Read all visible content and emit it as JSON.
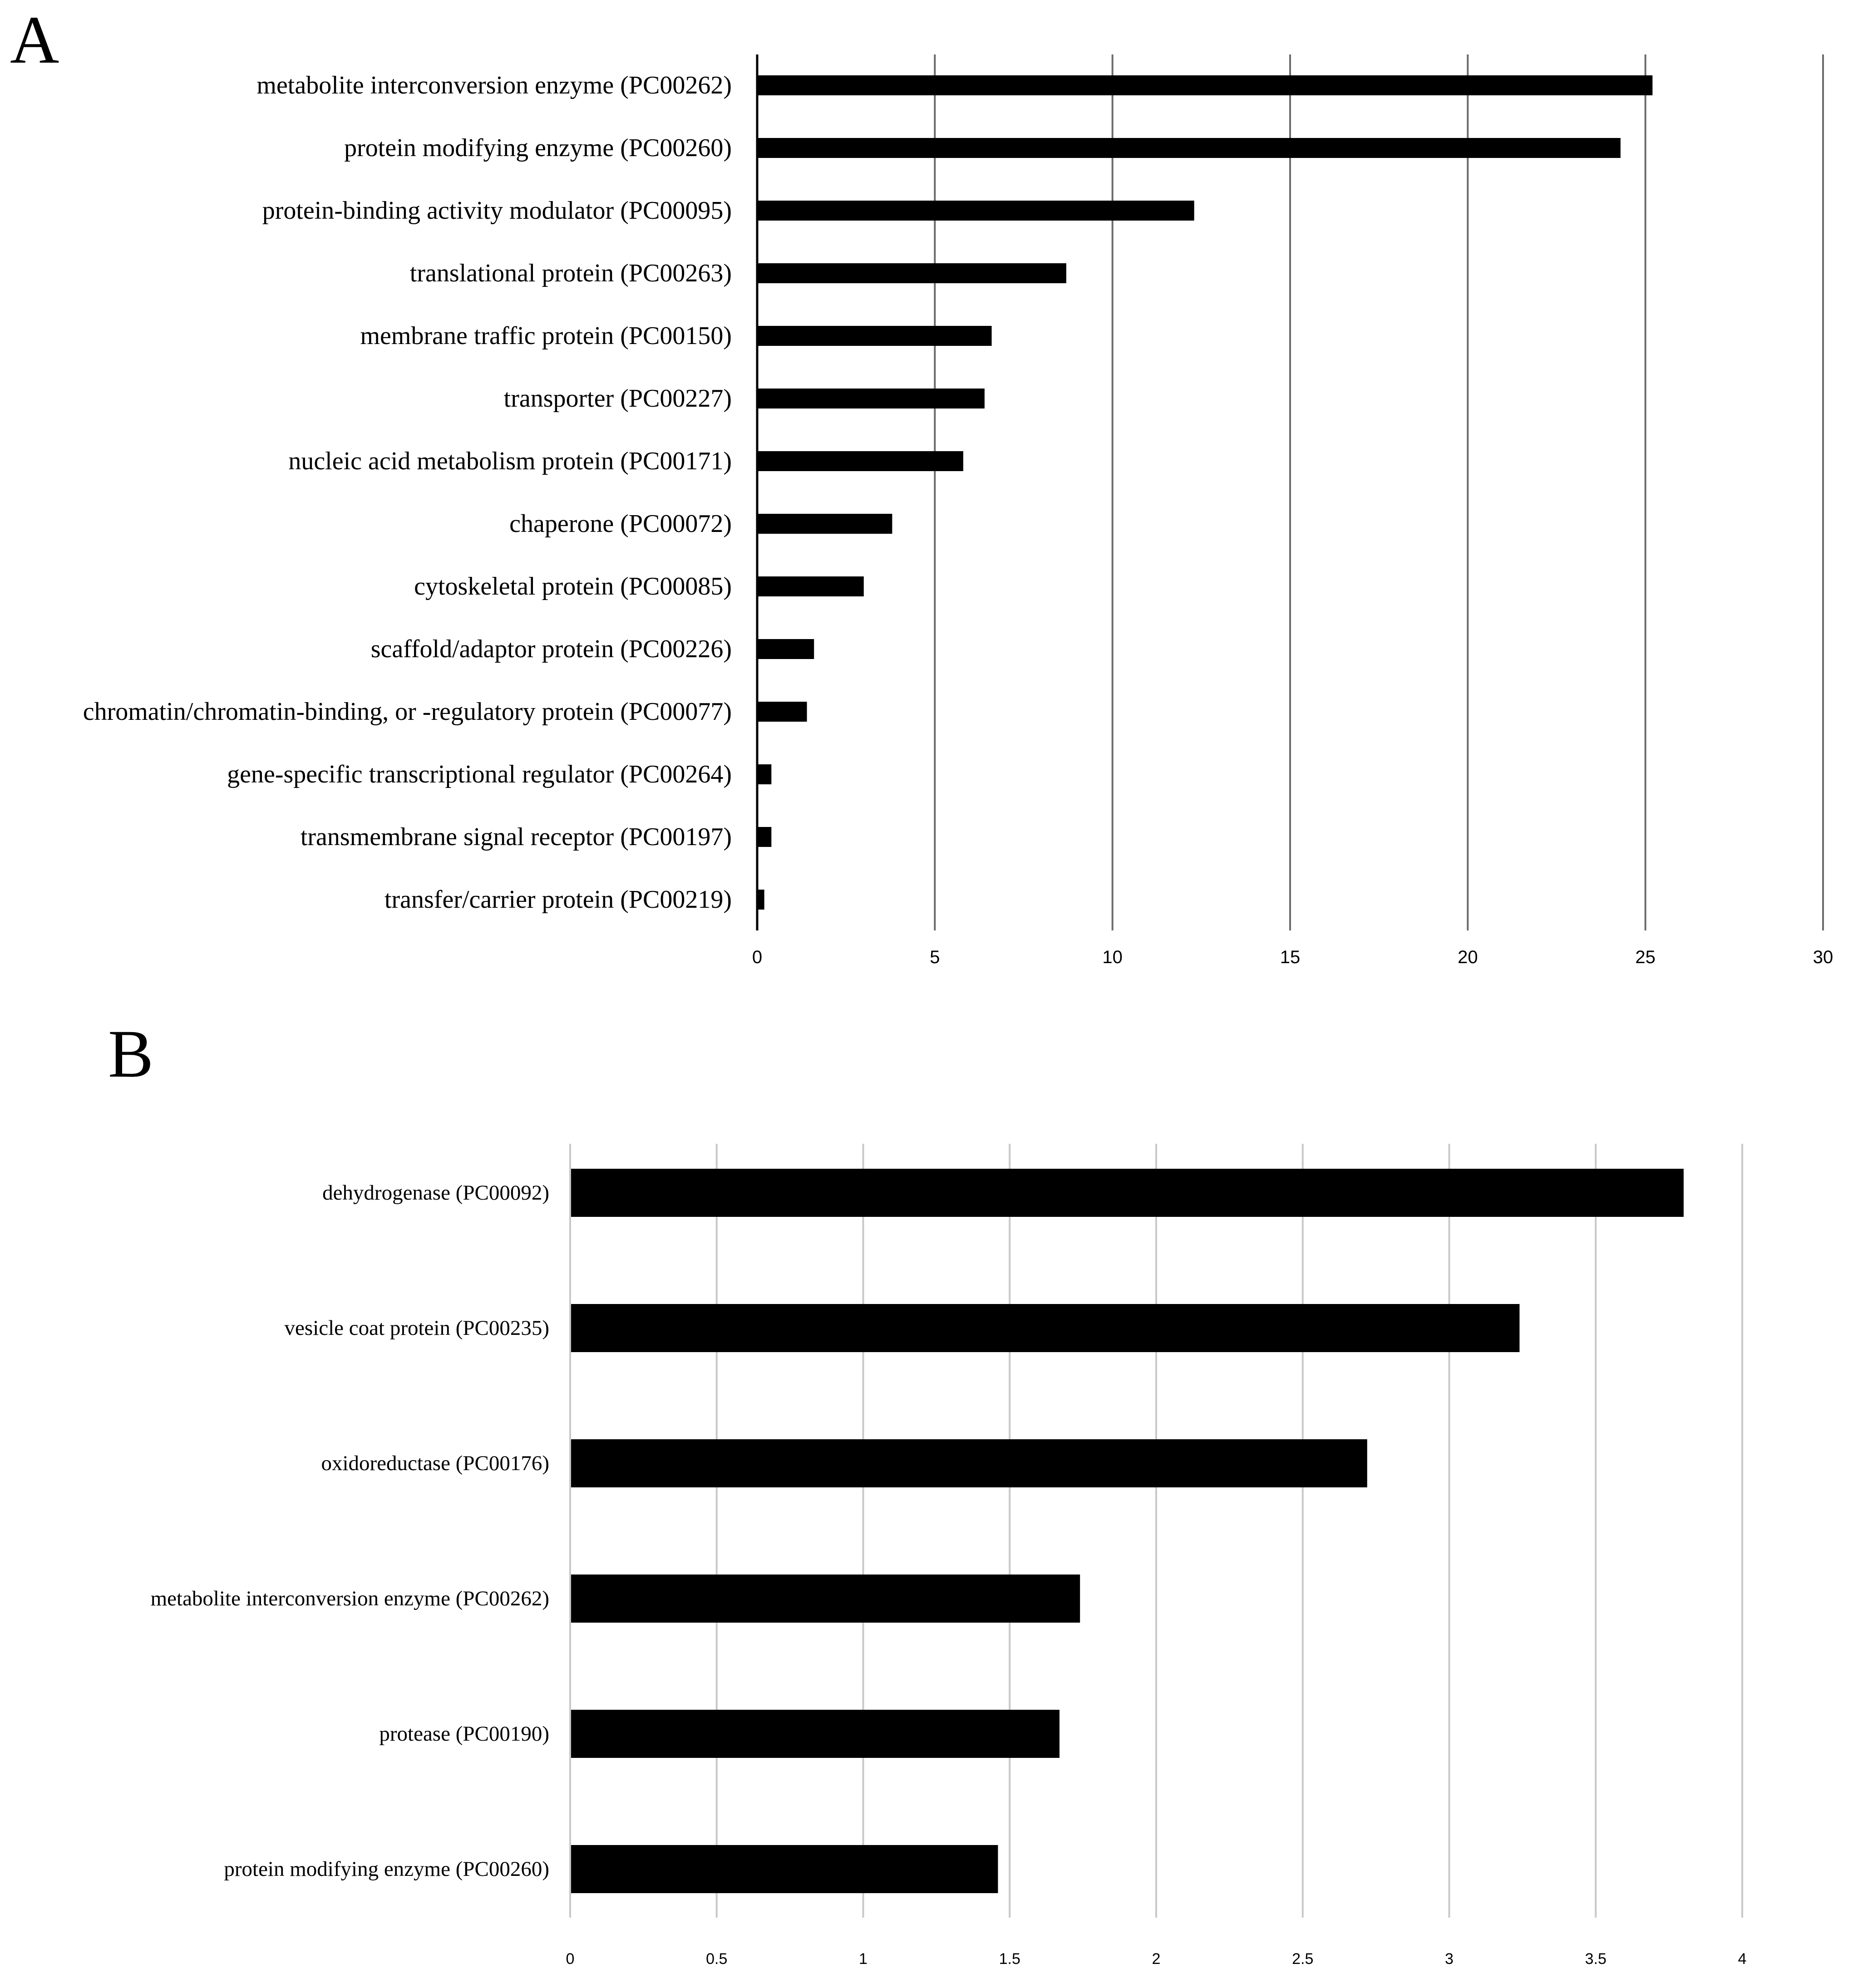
{
  "figure": {
    "panel_a_letter": "A",
    "panel_b_letter": "B"
  },
  "colors": {
    "bar": "#000000",
    "grid_a": "#6b6b6b",
    "grid_b": "#c8c8c8",
    "axis": "#000000",
    "background": "#ffffff"
  },
  "chart_data": [
    {
      "panel": "A",
      "type": "bar",
      "orientation": "horizontal",
      "title": "",
      "xlabel": "",
      "ylabel": "",
      "grid": true,
      "xlim": [
        0,
        30
      ],
      "ticks": [
        0,
        5,
        10,
        15,
        20,
        25,
        30
      ],
      "tick_labels": [
        "0",
        "5",
        "10",
        "15",
        "20",
        "25",
        "30"
      ],
      "categories": [
        "metabolite interconversion enzyme (PC00262)",
        "protein modifying enzyme (PC00260)",
        "protein-binding activity modulator (PC00095)",
        "translational protein (PC00263)",
        "membrane traffic protein (PC00150)",
        "transporter (PC00227)",
        "nucleic acid metabolism protein (PC00171)",
        "chaperone (PC00072)",
        "cytoskeletal protein (PC00085)",
        "scaffold/adaptor protein (PC00226)",
        "chromatin/chromatin-binding, or -regulatory protein (PC00077)",
        "gene-specific transcriptional regulator (PC00264)",
        "transmembrane signal receptor (PC00197)",
        "transfer/carrier protein (PC00219)"
      ],
      "values": [
        25.2,
        24.3,
        12.3,
        8.7,
        6.6,
        6.4,
        5.8,
        3.8,
        3.0,
        1.6,
        1.4,
        0.4,
        0.4,
        0.2
      ]
    },
    {
      "panel": "B",
      "type": "bar",
      "orientation": "horizontal",
      "title": "",
      "xlabel": "",
      "ylabel": "",
      "grid": true,
      "xlim": [
        0,
        4
      ],
      "ticks": [
        0,
        0.5,
        1,
        1.5,
        2,
        2.5,
        3,
        3.5,
        4
      ],
      "tick_labels": [
        "0",
        "0.5",
        "1",
        "1.5",
        "2",
        "2.5",
        "3",
        "3.5",
        "4"
      ],
      "categories": [
        "dehydrogenase (PC00092)",
        "vesicle coat protein (PC00235)",
        "oxidoreductase (PC00176)",
        "metabolite interconversion enzyme (PC00262)",
        "protease (PC00190)",
        "protein modifying enzyme (PC00260)"
      ],
      "values": [
        3.8,
        3.24,
        2.72,
        1.74,
        1.67,
        1.46
      ]
    }
  ]
}
